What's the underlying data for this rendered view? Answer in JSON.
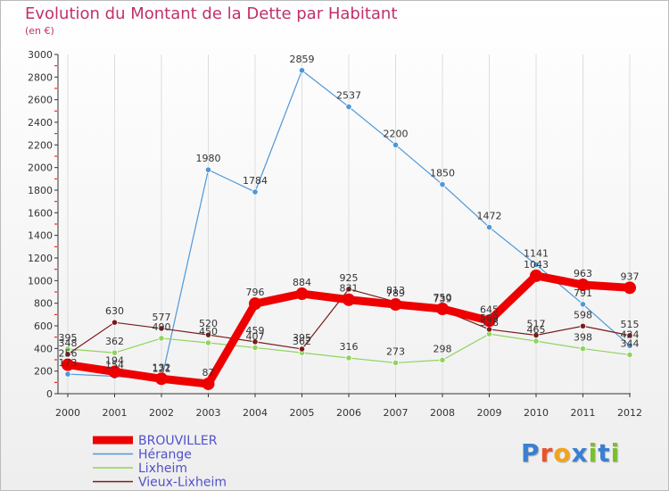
{
  "title": "Evolution du Montant de la Dette par Habitant",
  "subtitle": "(en €)",
  "logo": {
    "text": "Proxiti",
    "letter_colors": [
      "#3a7fd0",
      "#e8532d",
      "#f2a31b",
      "#3a7fd0",
      "#7bbf2d",
      "#3a7fd0",
      "#7bbf2d"
    ]
  },
  "chart_data": {
    "type": "line",
    "title": "Evolution du Montant de la Dette par Habitant",
    "ylabel": "(en €)",
    "ylim": [
      0,
      3000
    ],
    "y_ticks": [
      0,
      200,
      400,
      600,
      800,
      1000,
      1200,
      1400,
      1600,
      1800,
      2000,
      2200,
      2400,
      2600,
      2800,
      3000
    ],
    "categories": [
      "2000",
      "2001",
      "2002",
      "2003",
      "2004",
      "2005",
      "2006",
      "2007",
      "2008",
      "2009",
      "2010",
      "2011",
      "2012"
    ],
    "grid": "vertical",
    "series": [
      {
        "name": "BROUVILLER",
        "color": "#ee0000",
        "values": [
          256,
          194,
          132,
          87,
          796,
          884,
          831,
          789,
          750,
          645,
          1043,
          963,
          937
        ]
      },
      {
        "name": "Hérange",
        "color": "#4f97d9",
        "values": [
          173,
          154,
          121,
          1980,
          1784,
          2859,
          2537,
          2200,
          1850,
          1472,
          1141,
          791,
          424
        ]
      },
      {
        "name": "Lixheim",
        "color": "#8fd45f",
        "values": [
          395,
          362,
          490,
          450,
          407,
          362,
          316,
          273,
          298,
          528,
          465,
          398,
          344
        ]
      },
      {
        "name": "Vieux-Lixheim",
        "color": "#7a1c1c",
        "values": [
          348,
          630,
          577,
          520,
          459,
          395,
          925,
          813,
          739,
          569,
          517,
          598,
          515
        ]
      }
    ]
  }
}
